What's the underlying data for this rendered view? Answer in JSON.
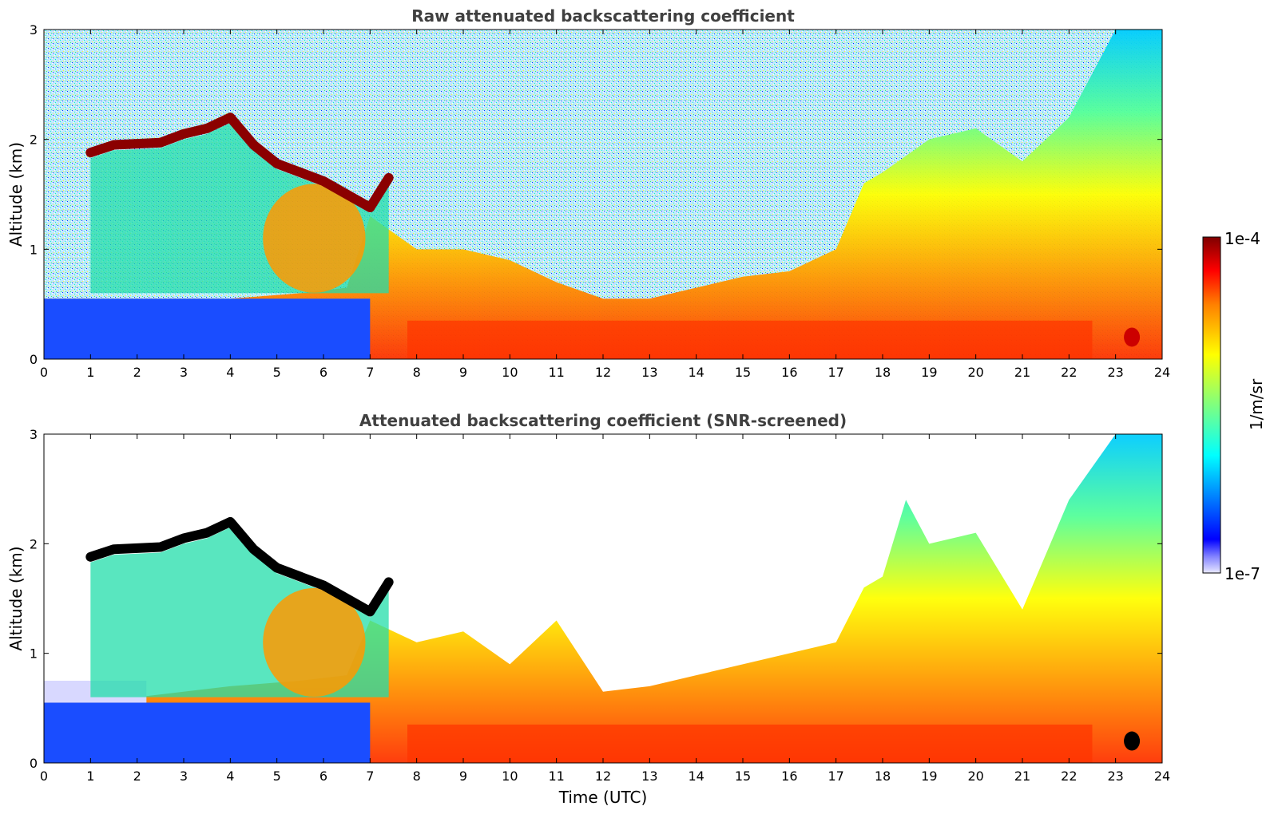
{
  "chart_data": [
    {
      "type": "heatmap",
      "title": "Raw attenuated backscattering coefficient",
      "xlabel": "",
      "ylabel": "Altitude (km)",
      "xlim": [
        0,
        24
      ],
      "ylim": [
        0,
        3
      ],
      "xticks": [
        "0",
        "1",
        "2",
        "3",
        "4",
        "5",
        "6",
        "7",
        "8",
        "9",
        "10",
        "11",
        "12",
        "13",
        "14",
        "15",
        "16",
        "17",
        "18",
        "19",
        "20",
        "21",
        "22",
        "23",
        "24"
      ],
      "yticks": [
        "0",
        "1",
        "2",
        "3"
      ],
      "grid": false,
      "screened": false,
      "layer_top_km": [
        [
          0,
          0.55
        ],
        [
          2,
          0.55
        ],
        [
          4,
          0.55
        ],
        [
          5.5,
          0.6
        ],
        [
          6.5,
          0.65
        ],
        [
          7.0,
          1.3
        ],
        [
          8,
          1.0
        ],
        [
          9,
          1.0
        ],
        [
          10,
          0.9
        ],
        [
          11,
          0.7
        ],
        [
          12,
          0.55
        ],
        [
          13,
          0.55
        ],
        [
          14,
          0.65
        ],
        [
          15,
          0.75
        ],
        [
          16,
          0.8
        ],
        [
          17,
          1.0
        ],
        [
          17.6,
          1.6
        ],
        [
          18,
          1.7
        ],
        [
          19,
          2.0
        ],
        [
          20,
          2.1
        ],
        [
          21,
          1.8
        ],
        [
          22,
          2.2
        ],
        [
          23,
          3.0
        ],
        [
          24,
          3.0
        ]
      ],
      "elevated_layer_km": [
        [
          1.0,
          1.88
        ],
        [
          1.5,
          1.95
        ],
        [
          2.5,
          1.97
        ],
        [
          3.0,
          2.05
        ],
        [
          3.5,
          2.1
        ],
        [
          4.0,
          2.2
        ],
        [
          4.5,
          1.95
        ],
        [
          5.0,
          1.78
        ],
        [
          5.5,
          1.7
        ],
        [
          6.0,
          1.62
        ],
        [
          6.5,
          1.5
        ],
        [
          7.0,
          1.38
        ],
        [
          7.4,
          1.65
        ]
      ]
    },
    {
      "type": "heatmap",
      "title": "Attenuated backscattering coefficient (SNR-screened)",
      "xlabel": "Time (UTC)",
      "ylabel": "Altitude (km)",
      "xlim": [
        0,
        24
      ],
      "ylim": [
        0,
        3
      ],
      "xticks": [
        "0",
        "1",
        "2",
        "3",
        "4",
        "5",
        "6",
        "7",
        "8",
        "9",
        "10",
        "11",
        "12",
        "13",
        "14",
        "15",
        "16",
        "17",
        "18",
        "19",
        "20",
        "21",
        "22",
        "23",
        "24"
      ],
      "yticks": [
        "0",
        "1",
        "2",
        "3"
      ],
      "grid": false,
      "screened": true,
      "layer_top_km": [
        [
          0,
          0.55
        ],
        [
          2,
          0.6
        ],
        [
          4,
          0.7
        ],
        [
          5.5,
          0.75
        ],
        [
          6.5,
          0.8
        ],
        [
          7.0,
          1.3
        ],
        [
          8,
          1.1
        ],
        [
          9,
          1.2
        ],
        [
          10,
          0.9
        ],
        [
          11,
          1.3
        ],
        [
          12,
          0.65
        ],
        [
          13,
          0.7
        ],
        [
          14,
          0.8
        ],
        [
          15,
          0.9
        ],
        [
          16,
          1.0
        ],
        [
          17,
          1.1
        ],
        [
          17.6,
          1.6
        ],
        [
          18,
          1.7
        ],
        [
          18.5,
          2.4
        ],
        [
          19,
          2.0
        ],
        [
          20,
          2.1
        ],
        [
          21,
          1.4
        ],
        [
          22,
          2.4
        ],
        [
          23,
          3.0
        ],
        [
          24,
          3.0
        ]
      ],
      "elevated_layer_km": [
        [
          1.0,
          1.88
        ],
        [
          1.5,
          1.95
        ],
        [
          2.5,
          1.97
        ],
        [
          3.0,
          2.05
        ],
        [
          3.5,
          2.1
        ],
        [
          4.0,
          2.2
        ],
        [
          4.5,
          1.95
        ],
        [
          5.0,
          1.78
        ],
        [
          5.5,
          1.7
        ],
        [
          6.0,
          1.62
        ],
        [
          6.5,
          1.5
        ],
        [
          7.0,
          1.38
        ],
        [
          7.4,
          1.65
        ]
      ]
    }
  ],
  "colorbar": {
    "label": "1/m/sr",
    "top_label": "1e-4",
    "bottom_label": "1e-7",
    "min": 1e-07,
    "max": 0.0001,
    "scale": "log",
    "colormap": "jet",
    "colors": [
      "#e8e8ff",
      "#0000ff",
      "#00ffff",
      "#7fff7f",
      "#ffff00",
      "#ff7f00",
      "#ff0000",
      "#7f0000"
    ]
  }
}
